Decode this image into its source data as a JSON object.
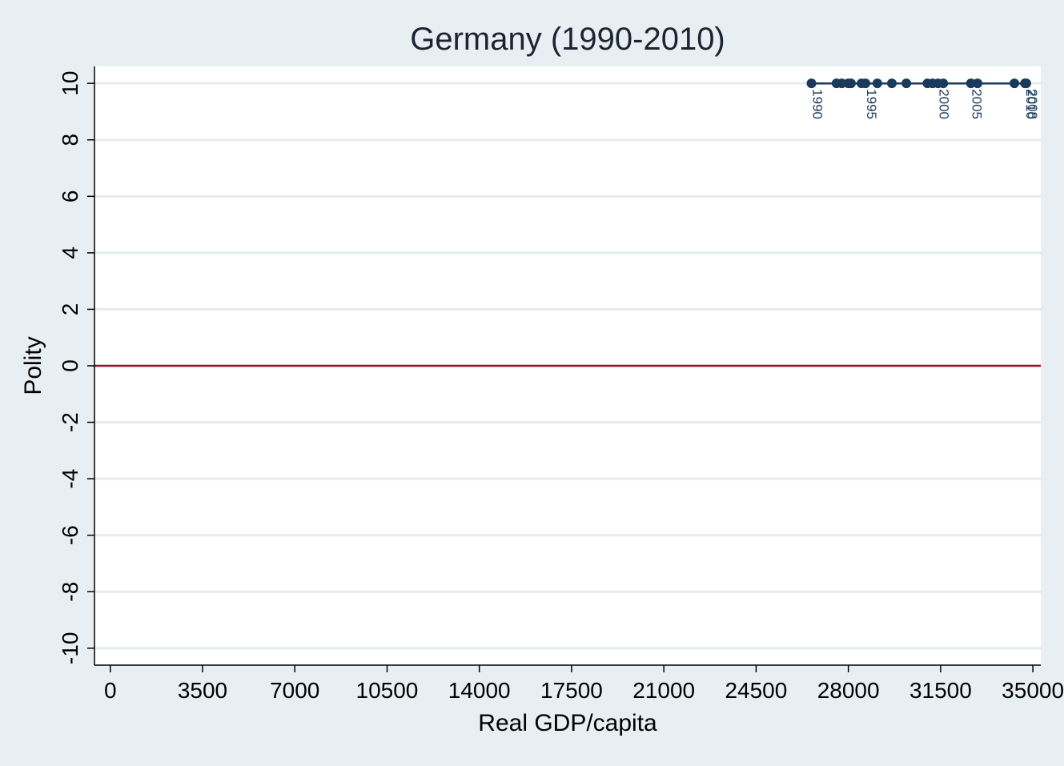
{
  "chart_data": {
    "type": "line",
    "title": "Germany (1990-2010)",
    "xlabel": "Real GDP/capita",
    "ylabel": "Polity",
    "xlim": [
      -600,
      35300
    ],
    "ylim": [
      -10.6,
      10.6
    ],
    "x_ticks": [
      0,
      3500,
      7000,
      10500,
      14000,
      17500,
      21000,
      24500,
      28000,
      31500,
      35000
    ],
    "y_ticks": [
      -10,
      -8,
      -6,
      -4,
      -2,
      0,
      2,
      4,
      6,
      8,
      10
    ],
    "grid": true,
    "legend": "none",
    "reference_line": {
      "y": 0,
      "color": "#a50f28"
    },
    "series": [
      {
        "color": "#1a3a5c",
        "points": [
          {
            "x": 26600,
            "y": 10,
            "label": "1990"
          },
          {
            "x": 27550,
            "y": 10,
            "label": ""
          },
          {
            "x": 27750,
            "y": 10,
            "label": ""
          },
          {
            "x": 28000,
            "y": 10,
            "label": ""
          },
          {
            "x": 28100,
            "y": 10,
            "label": ""
          },
          {
            "x": 28500,
            "y": 10,
            "label": ""
          },
          {
            "x": 28650,
            "y": 10,
            "label": "1995"
          },
          {
            "x": 29100,
            "y": 10,
            "label": ""
          },
          {
            "x": 29650,
            "y": 10,
            "label": ""
          },
          {
            "x": 30200,
            "y": 10,
            "label": ""
          },
          {
            "x": 31000,
            "y": 10,
            "label": ""
          },
          {
            "x": 31200,
            "y": 10,
            "label": ""
          },
          {
            "x": 31400,
            "y": 10,
            "label": "2000"
          },
          {
            "x": 31600,
            "y": 10,
            "label": ""
          },
          {
            "x": 32650,
            "y": 10,
            "label": "2005"
          },
          {
            "x": 32900,
            "y": 10,
            "label": ""
          },
          {
            "x": 34300,
            "y": 10,
            "label": ""
          },
          {
            "x": 34750,
            "y": 10,
            "label": "2008"
          },
          {
            "x": 34700,
            "y": 10,
            "label": "2010"
          }
        ]
      }
    ]
  }
}
